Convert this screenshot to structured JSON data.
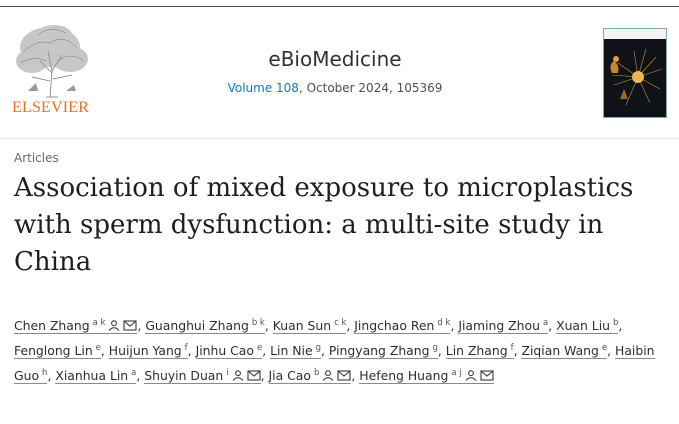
{
  "publisher": {
    "name": "ELSEVIER",
    "logo_color": "#e9711c"
  },
  "journal": {
    "title": "eBioMedicine",
    "volume_link": "Volume 108",
    "issue_info": ", October 2024, 105369",
    "link_color": "#0c7dbb"
  },
  "cover": {
    "icon": "journal-cover-thumbnail"
  },
  "article": {
    "section": "Articles",
    "title": "Association of mixed exposure to microplastics with sperm dysfunction: a multi-site study in China"
  },
  "authors": [
    {
      "name": "Chen Zhang",
      "aff": "a k",
      "person": true,
      "email": true
    },
    {
      "name": "Guanghui Zhang",
      "aff": "b k",
      "person": false,
      "email": false
    },
    {
      "name": "Kuan Sun",
      "aff": "c k",
      "person": false,
      "email": false
    },
    {
      "name": "Jingchao Ren",
      "aff": "d k",
      "person": false,
      "email": false
    },
    {
      "name": "Jiaming Zhou",
      "aff": "a",
      "person": false,
      "email": false
    },
    {
      "name": "Xuan Liu",
      "aff": "b",
      "person": false,
      "email": false
    },
    {
      "name": "Fenglong Lin",
      "aff": "e",
      "person": false,
      "email": false
    },
    {
      "name": "Huijun Yang",
      "aff": "f",
      "person": false,
      "email": false
    },
    {
      "name": "Jinhu Cao",
      "aff": "e",
      "person": false,
      "email": false
    },
    {
      "name": "Lin Nie",
      "aff": "g",
      "person": false,
      "email": false
    },
    {
      "name": "Pingyang Zhang",
      "aff": "g",
      "person": false,
      "email": false
    },
    {
      "name": "Lin Zhang",
      "aff": "f",
      "person": false,
      "email": false
    },
    {
      "name": "Ziqian Wang",
      "aff": "e",
      "person": false,
      "email": false
    },
    {
      "name": "Haibin Guo",
      "aff": "h",
      "person": false,
      "email": false
    },
    {
      "name": "Xianhua Lin",
      "aff": "a",
      "person": false,
      "email": false
    },
    {
      "name": "Shuyin Duan",
      "aff": "i",
      "person": true,
      "email": true
    },
    {
      "name": "Jia Cao",
      "aff": "b",
      "person": true,
      "email": true
    },
    {
      "name": "Hefeng Huang",
      "aff": "a j",
      "person": true,
      "email": true
    }
  ]
}
